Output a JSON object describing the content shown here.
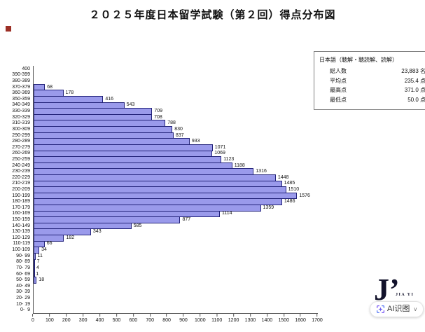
{
  "title": "２０２５年度日本留学試験（第２回）得点分布図",
  "stats_box": {
    "header": "日本語（聴解・聴読解、読解）",
    "rows": [
      {
        "label": "総人数",
        "value": "23,883 名"
      },
      {
        "label": "平均点",
        "value": "235.4 点"
      },
      {
        "label": "最高点",
        "value": "371.0 点"
      },
      {
        "label": "最低点",
        "value": "50.0 点"
      }
    ]
  },
  "chart_data": {
    "type": "bar",
    "orientation": "horizontal",
    "title": "２０２５年度日本留学試験（第２回）得点分布図",
    "xlabel": "",
    "ylabel": "",
    "xlim": [
      0,
      1700
    ],
    "x_ticks": [
      0,
      100,
      200,
      300,
      400,
      500,
      600,
      700,
      800,
      900,
      1000,
      1100,
      1200,
      1300,
      1400,
      1500,
      1600,
      1700
    ],
    "grid": false,
    "legend_position": "top-right",
    "bar_color": "#9a9aeb",
    "bar_border_color": "#23237a",
    "categories": [
      "400",
      "390-399",
      "380-389",
      "370-379",
      "360-369",
      "350-359",
      "340-349",
      "330-339",
      "320-329",
      "310-319",
      "300-309",
      "290-299",
      "280-289",
      "270-279",
      "260-269",
      "250-259",
      "240-249",
      "230-239",
      "220-229",
      "210-219",
      "200-209",
      "190-199",
      "180-189",
      "170-179",
      "160-169",
      "150-159",
      "140-149",
      "130-139",
      "120-129",
      "110-119",
      "100-109",
      "90- 99",
      "80- 89",
      "70- 79",
      "60- 69",
      "50- 59",
      "40- 49",
      "30- 39",
      "20- 29",
      "10- 19",
      "0-  9"
    ],
    "values": [
      0,
      0,
      0,
      68,
      178,
      416,
      543,
      709,
      708,
      788,
      830,
      837,
      933,
      1071,
      1069,
      1123,
      1188,
      1316,
      1448,
      1485,
      1510,
      1576,
      1486,
      1359,
      1114,
      877,
      585,
      343,
      182,
      66,
      34,
      11,
      7,
      4,
      1,
      18,
      0,
      0,
      0,
      0,
      0
    ]
  },
  "watermark": {
    "logo_text": "J’",
    "logo_subtext": "JIA YI",
    "button_label": "AI识图",
    "button_chevron": "∨"
  }
}
